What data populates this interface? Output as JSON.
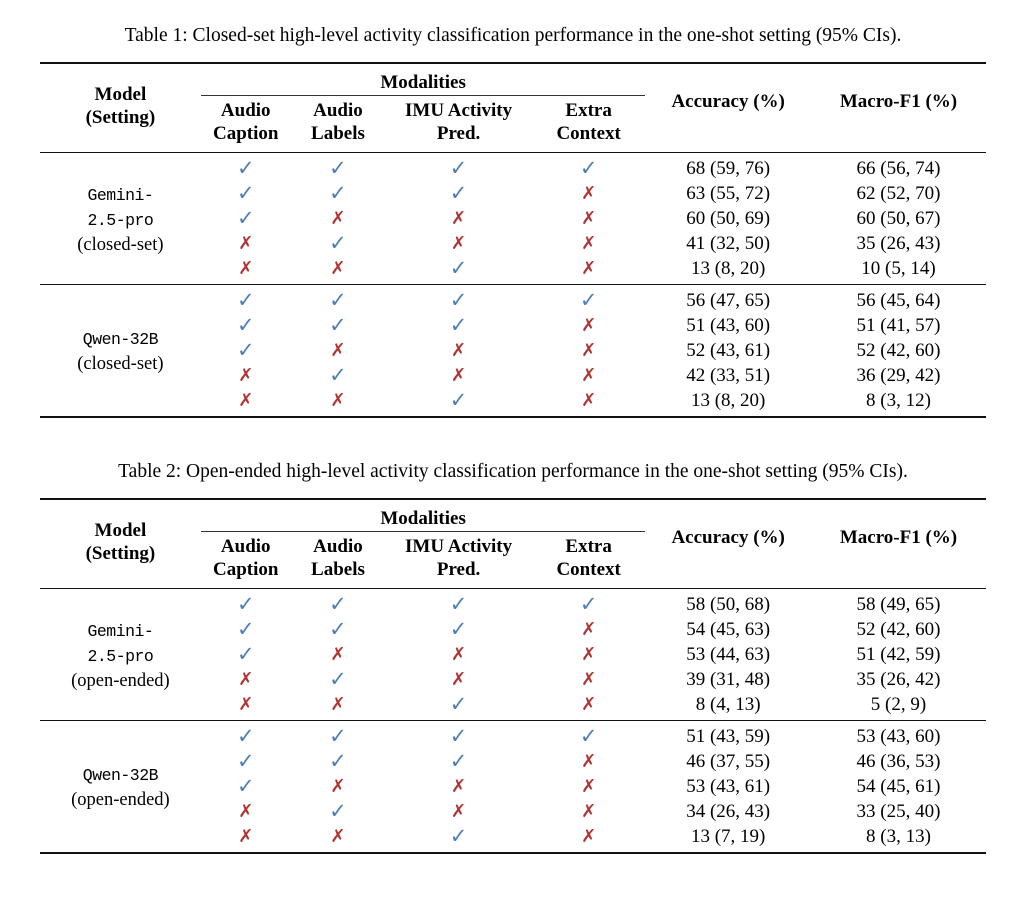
{
  "colors": {
    "check": "#4d7fb5",
    "cross": "#b13434",
    "rule": "#111111",
    "background": "#ffffff"
  },
  "symbols": {
    "check": "✓",
    "cross": "✗"
  },
  "tables": [
    {
      "caption": "Table 1: Closed-set high-level activity classification performance in the one-shot setting (95% CIs).",
      "header": {
        "model_line1": "Model",
        "model_line2": "(Setting)",
        "modalities": "Modalities",
        "modality_cols": [
          [
            "Audio",
            "Caption"
          ],
          [
            "Audio",
            "Labels"
          ],
          [
            "IMU Activity",
            "Pred."
          ],
          [
            "Extra",
            "Context"
          ]
        ],
        "accuracy": "Accuracy (%)",
        "macro_f1": "Macro-F1 (%)"
      },
      "groups": [
        {
          "model_lines": [
            "Gemini-",
            "2.5-pro"
          ],
          "setting": "(closed-set)",
          "rows": [
            {
              "modalities": [
                true,
                true,
                true,
                true
              ],
              "accuracy": "68 (59, 76)",
              "macro_f1": "66 (56, 74)"
            },
            {
              "modalities": [
                true,
                true,
                true,
                false
              ],
              "accuracy": "63 (55, 72)",
              "macro_f1": "62 (52, 70)"
            },
            {
              "modalities": [
                true,
                false,
                false,
                false
              ],
              "accuracy": "60 (50, 69)",
              "macro_f1": "60 (50, 67)"
            },
            {
              "modalities": [
                false,
                true,
                false,
                false
              ],
              "accuracy": "41 (32, 50)",
              "macro_f1": "35 (26, 43)"
            },
            {
              "modalities": [
                false,
                false,
                true,
                false
              ],
              "accuracy": "13 (8, 20)",
              "macro_f1": "10 (5, 14)"
            }
          ]
        },
        {
          "model_lines": [
            "Qwen-32B"
          ],
          "setting": "(closed-set)",
          "rows": [
            {
              "modalities": [
                true,
                true,
                true,
                true
              ],
              "accuracy": "56 (47, 65)",
              "macro_f1": "56 (45, 64)"
            },
            {
              "modalities": [
                true,
                true,
                true,
                false
              ],
              "accuracy": "51 (43, 60)",
              "macro_f1": "51 (41, 57)"
            },
            {
              "modalities": [
                true,
                false,
                false,
                false
              ],
              "accuracy": "52 (43, 61)",
              "macro_f1": "52 (42, 60)"
            },
            {
              "modalities": [
                false,
                true,
                false,
                false
              ],
              "accuracy": "42 (33, 51)",
              "macro_f1": "36 (29, 42)"
            },
            {
              "modalities": [
                false,
                false,
                true,
                false
              ],
              "accuracy": "13 (8, 20)",
              "macro_f1": "8 (3, 12)"
            }
          ]
        }
      ]
    },
    {
      "caption": "Table 2: Open-ended high-level activity classification performance in the one-shot setting (95% CIs).",
      "header": {
        "model_line1": "Model",
        "model_line2": "(Setting)",
        "modalities": "Modalities",
        "modality_cols": [
          [
            "Audio",
            "Caption"
          ],
          [
            "Audio",
            "Labels"
          ],
          [
            "IMU Activity",
            "Pred."
          ],
          [
            "Extra",
            "Context"
          ]
        ],
        "accuracy": "Accuracy (%)",
        "macro_f1": "Macro-F1 (%)"
      },
      "groups": [
        {
          "model_lines": [
            "Gemini-",
            "2.5-pro"
          ],
          "setting": "(open-ended)",
          "rows": [
            {
              "modalities": [
                true,
                true,
                true,
                true
              ],
              "accuracy": "58 (50, 68)",
              "macro_f1": "58 (49, 65)"
            },
            {
              "modalities": [
                true,
                true,
                true,
                false
              ],
              "accuracy": "54 (45, 63)",
              "macro_f1": "52 (42, 60)"
            },
            {
              "modalities": [
                true,
                false,
                false,
                false
              ],
              "accuracy": "53 (44, 63)",
              "macro_f1": "51 (42, 59)"
            },
            {
              "modalities": [
                false,
                true,
                false,
                false
              ],
              "accuracy": "39 (31, 48)",
              "macro_f1": "35 (26, 42)"
            },
            {
              "modalities": [
                false,
                false,
                true,
                false
              ],
              "accuracy": "8 (4, 13)",
              "macro_f1": "5 (2, 9)"
            }
          ]
        },
        {
          "model_lines": [
            "Qwen-32B"
          ],
          "setting": "(open-ended)",
          "rows": [
            {
              "modalities": [
                true,
                true,
                true,
                true
              ],
              "accuracy": "51 (43, 59)",
              "macro_f1": "53 (43, 60)"
            },
            {
              "modalities": [
                true,
                true,
                true,
                false
              ],
              "accuracy": "46 (37, 55)",
              "macro_f1": "46 (36, 53)"
            },
            {
              "modalities": [
                true,
                false,
                false,
                false
              ],
              "accuracy": "53 (43, 61)",
              "macro_f1": "54 (45, 61)"
            },
            {
              "modalities": [
                false,
                true,
                false,
                false
              ],
              "accuracy": "34 (26, 43)",
              "macro_f1": "33 (25, 40)"
            },
            {
              "modalities": [
                false,
                false,
                true,
                false
              ],
              "accuracy": "13 (7, 19)",
              "macro_f1": "8 (3, 13)"
            }
          ]
        }
      ]
    }
  ]
}
